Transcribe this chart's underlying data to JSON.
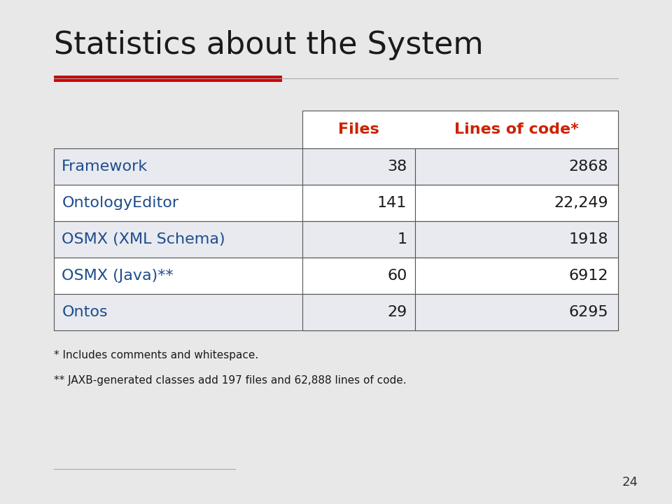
{
  "title": "Statistics about the System",
  "title_color": "#1a1a1a",
  "title_fontsize": 32,
  "red_bar_color": "#cc0000",
  "background_color": "#e8e8e8",
  "header_row": [
    "Files",
    "Lines of code*"
  ],
  "header_color": "#cc2200",
  "rows": [
    [
      "Framework",
      "38",
      "2868"
    ],
    [
      "OntologyEditor",
      "141",
      "22,249"
    ],
    [
      "OSMX (XML Schema)",
      "1",
      "1918"
    ],
    [
      "OSMX (Java)**",
      "60",
      "6912"
    ],
    [
      "Ontos",
      "29",
      "6295"
    ]
  ],
  "row_label_color": "#1e4d8c",
  "row_value_color": "#1a1a1a",
  "table_bg_even": "#e8eaf0",
  "table_bg_odd": "#ffffff",
  "header_bg": "#ffffff",
  "footnote1": "* Includes comments and whitespace.",
  "footnote2": "** JAXB-generated classes add 197 files and 62,888 lines of code.",
  "footnote_color": "#1a1a1a",
  "footnote_fontsize": 11,
  "slide_number": "24",
  "border_color": "#555555"
}
